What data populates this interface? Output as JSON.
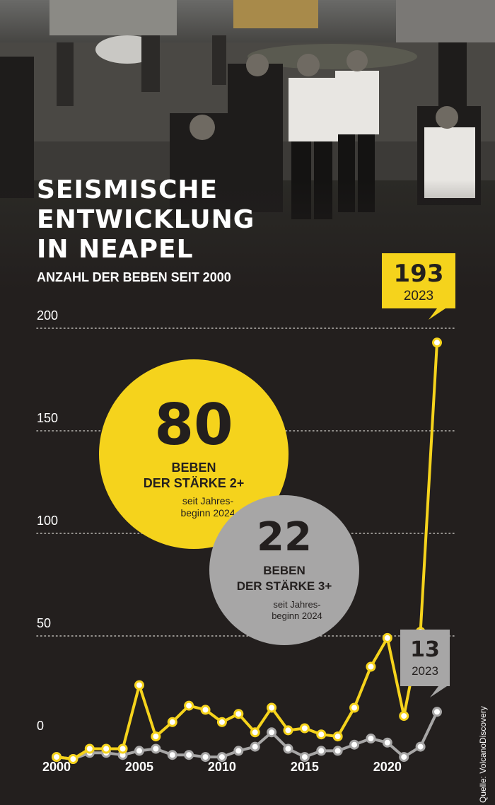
{
  "headline": {
    "lines": [
      "SEISMISCHE",
      "ENTWICKLUNG",
      "IN NEAPEL"
    ],
    "subtitle": "ANZAHL DER BEBEN SEIT 2000"
  },
  "callouts": {
    "magnitude2": {
      "value": "193",
      "year": "2023"
    },
    "magnitude3": {
      "value": "13",
      "year": "2023"
    }
  },
  "bubbles": {
    "magnitude2": {
      "value": "80",
      "label_lines": [
        "BEBEN",
        "DER STÄRKE 2+"
      ],
      "note_lines": [
        "seit Jahres-",
        "beginn 2024"
      ],
      "color": "#f5d31c"
    },
    "magnitude3": {
      "value": "22",
      "label_lines": [
        "BEBEN",
        "DER STÄRKE 3+"
      ],
      "note_lines": [
        "seit Jahres-",
        "beginn 2024"
      ],
      "color": "#a7a6a6"
    }
  },
  "source": "Quelle: VolcanoDiscovery",
  "chart_data": {
    "type": "line",
    "title": "SEISMISCHE ENTWICKLUNG IN NEAPEL",
    "subtitle": "ANZAHL DER BEBEN SEIT 2000",
    "xlabel": "",
    "ylabel": "",
    "x": [
      2000,
      2001,
      2002,
      2003,
      2004,
      2005,
      2006,
      2007,
      2008,
      2009,
      2010,
      2011,
      2012,
      2013,
      2014,
      2015,
      2016,
      2017,
      2018,
      2019,
      2020,
      2021,
      2022,
      2023
    ],
    "xticks": [
      2000,
      2005,
      2010,
      2015,
      2020
    ],
    "yticks": [
      0,
      50,
      100,
      150,
      200
    ],
    "ylim": [
      0,
      200
    ],
    "xlim": [
      2000,
      2023
    ],
    "grid": "horizontal dotted",
    "series": [
      {
        "name": "BEBEN DER STÄRKE 2+",
        "color": "#f5d31c",
        "values": [
          -9,
          -10,
          -5,
          -5,
          -5,
          26,
          1,
          8,
          16,
          14,
          8,
          12,
          3,
          15,
          4,
          5,
          2,
          1,
          15,
          35,
          49,
          11,
          52,
          193
        ]
      },
      {
        "name": "BEBEN DER STÄRKE 3+",
        "color": "#a7a6a6",
        "values": [
          -9,
          -10,
          -7,
          -7,
          -8,
          -6,
          -5,
          -8,
          -8,
          -9,
          -9,
          -6,
          -4,
          3,
          -5,
          -9,
          -6,
          -6,
          -3,
          0,
          -2,
          -9,
          -4,
          13
        ]
      }
    ]
  }
}
